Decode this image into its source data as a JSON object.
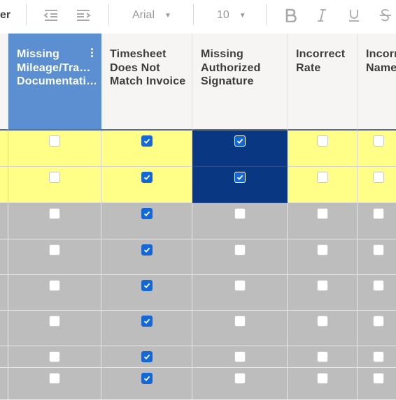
{
  "toolbar": {
    "partial_label": "er",
    "font": "Arial",
    "size": "10"
  },
  "columns": [
    {
      "title": "Missing\nMileage/Tra…\nDocumentati…"
    },
    {
      "title": "Timesheet\nDoes Not\nMatch Invoice"
    },
    {
      "title": "Missing\nAuthorized\nSignature"
    },
    {
      "title": "Incorrect\nRate"
    },
    {
      "title": "Incorr\nName"
    }
  ],
  "rows": [
    {
      "style": "yellow",
      "checks": [
        false,
        true,
        true,
        false,
        false
      ]
    },
    {
      "style": "yellow",
      "checks": [
        false,
        true,
        true,
        false,
        false
      ]
    },
    {
      "style": "gray",
      "checks": [
        false,
        true,
        false,
        false,
        false
      ]
    },
    {
      "style": "gray",
      "checks": [
        false,
        true,
        false,
        false,
        false
      ]
    },
    {
      "style": "gray",
      "checks": [
        false,
        true,
        false,
        false,
        false
      ]
    },
    {
      "style": "gray",
      "checks": [
        false,
        true,
        false,
        false,
        false
      ]
    },
    {
      "style": "gray",
      "checks": [
        false,
        true,
        false,
        false,
        false
      ]
    },
    {
      "style": "gray",
      "checks": [
        false,
        true,
        false,
        false,
        false
      ]
    }
  ],
  "colors": {
    "selected_header": "#5b8fd1",
    "highlight_row": "#ffff88",
    "inactive_row": "#bdbdbd",
    "highlight_cell": "#0a3782",
    "checkbox_on": "#1467d6"
  }
}
